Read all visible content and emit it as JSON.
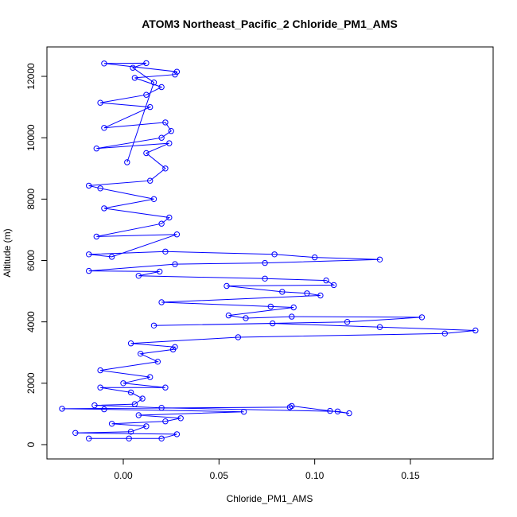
{
  "chart_data": {
    "type": "scatter",
    "title": "ATOM3 Northeast_Pacific_2 Chloride_PM1_AMS",
    "xlabel": "Chloride_PM1_AMS",
    "ylabel": "Altitude (m)",
    "xlim": [
      -0.04,
      0.19
    ],
    "ylim": [
      0,
      12700
    ],
    "xticks": [
      0.0,
      0.05,
      0.1,
      0.15
    ],
    "xtick_labels": [
      "0.00",
      "0.05",
      "0.10",
      "0.15"
    ],
    "yticks": [
      0,
      2000,
      4000,
      6000,
      8000,
      10000,
      12000
    ],
    "ytick_labels": [
      "0",
      "2000",
      "4000",
      "6000",
      "8000",
      "10000",
      "12000"
    ],
    "grid": false,
    "legend": "none",
    "style": "points connected by lines (type='b')",
    "colors": {
      "series": "#0000ff",
      "axes": "#000000",
      "background": "#ffffff"
    },
    "series": [
      {
        "values_note": "Chloride_PM1_AMS (x) vs Altitude in m (y), measured profile sequence",
        "points": [
          [
            0.003,
            200
          ],
          [
            -0.018,
            200
          ],
          [
            0.02,
            200
          ],
          [
            0.028,
            340
          ],
          [
            -0.025,
            380
          ],
          [
            0.004,
            420
          ],
          [
            0.012,
            600
          ],
          [
            -0.006,
            680
          ],
          [
            0.022,
            760
          ],
          [
            0.03,
            860
          ],
          [
            0.008,
            960
          ],
          [
            0.063,
            1070
          ],
          [
            -0.01,
            1150
          ],
          [
            -0.032,
            1170
          ],
          [
            0.087,
            1220
          ],
          [
            0.088,
            1260
          ],
          [
            0.108,
            1100
          ],
          [
            0.118,
            1020
          ],
          [
            0.112,
            1080
          ],
          [
            0.02,
            1200
          ],
          [
            -0.015,
            1280
          ],
          [
            0.006,
            1320
          ],
          [
            0.01,
            1500
          ],
          [
            0.004,
            1700
          ],
          [
            -0.012,
            1860
          ],
          [
            0.022,
            1860
          ],
          [
            0.0,
            2000
          ],
          [
            0.014,
            2200
          ],
          [
            -0.012,
            2420
          ],
          [
            0.018,
            2700
          ],
          [
            0.009,
            2960
          ],
          [
            0.026,
            3100
          ],
          [
            0.027,
            3180
          ],
          [
            0.004,
            3300
          ],
          [
            0.06,
            3500
          ],
          [
            0.168,
            3620
          ],
          [
            0.184,
            3720
          ],
          [
            0.134,
            3830
          ],
          [
            0.078,
            3950
          ],
          [
            0.016,
            3880
          ],
          [
            0.117,
            4000
          ],
          [
            0.156,
            4150
          ],
          [
            0.088,
            4170
          ],
          [
            0.064,
            4120
          ],
          [
            0.055,
            4210
          ],
          [
            0.089,
            4470
          ],
          [
            0.077,
            4500
          ],
          [
            0.02,
            4640
          ],
          [
            0.103,
            4860
          ],
          [
            0.096,
            4930
          ],
          [
            0.083,
            4980
          ],
          [
            0.054,
            5170
          ],
          [
            0.11,
            5200
          ],
          [
            0.106,
            5350
          ],
          [
            0.074,
            5410
          ],
          [
            0.008,
            5500
          ],
          [
            0.019,
            5640
          ],
          [
            -0.018,
            5660
          ],
          [
            0.027,
            5880
          ],
          [
            0.074,
            5920
          ],
          [
            0.134,
            6030
          ],
          [
            0.1,
            6100
          ],
          [
            0.079,
            6200
          ],
          [
            0.022,
            6290
          ],
          [
            -0.018,
            6200
          ],
          [
            -0.006,
            6120
          ],
          [
            0.028,
            6850
          ],
          [
            -0.014,
            6780
          ],
          [
            0.02,
            7200
          ],
          [
            0.024,
            7400
          ],
          [
            -0.01,
            7700
          ],
          [
            0.016,
            8000
          ],
          [
            -0.012,
            8350
          ],
          [
            -0.018,
            8440
          ],
          [
            0.014,
            8600
          ],
          [
            0.022,
            9000
          ],
          [
            0.012,
            9500
          ],
          [
            0.024,
            9820
          ],
          [
            -0.014,
            9650
          ],
          [
            0.02,
            10000
          ],
          [
            0.025,
            10220
          ],
          [
            0.022,
            10500
          ],
          [
            -0.01,
            10320
          ],
          [
            0.014,
            11000
          ],
          [
            -0.012,
            11140
          ],
          [
            0.012,
            11400
          ],
          [
            0.02,
            11650
          ],
          [
            0.006,
            11950
          ],
          [
            0.027,
            12060
          ],
          [
            0.028,
            12150
          ],
          [
            -0.01,
            12420
          ],
          [
            0.012,
            12430
          ],
          [
            0.005,
            12280
          ],
          [
            0.016,
            11800
          ],
          [
            0.002,
            9200
          ]
        ]
      }
    ]
  }
}
